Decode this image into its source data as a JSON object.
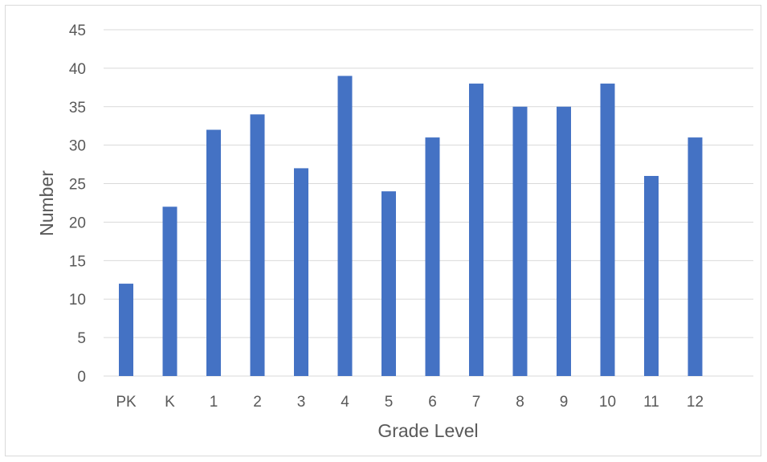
{
  "chart_data": {
    "type": "bar",
    "title": "",
    "xlabel": "Grade Level",
    "ylabel": "Number",
    "categories": [
      "PK",
      "K",
      "1",
      "2",
      "3",
      "4",
      "5",
      "6",
      "7",
      "8",
      "9",
      "10",
      "11",
      "12"
    ],
    "values": [
      12,
      22,
      32,
      34,
      27,
      39,
      24,
      31,
      38,
      35,
      35,
      38,
      26,
      31
    ],
    "ylim": [
      0,
      45
    ],
    "yticks": [
      0,
      5,
      10,
      15,
      20,
      25,
      30,
      35,
      40,
      45
    ],
    "grid": true,
    "legend": "none",
    "colors": {
      "bar": "#4472C4",
      "gridline": "#d9d9d9",
      "text": "#595959"
    }
  }
}
